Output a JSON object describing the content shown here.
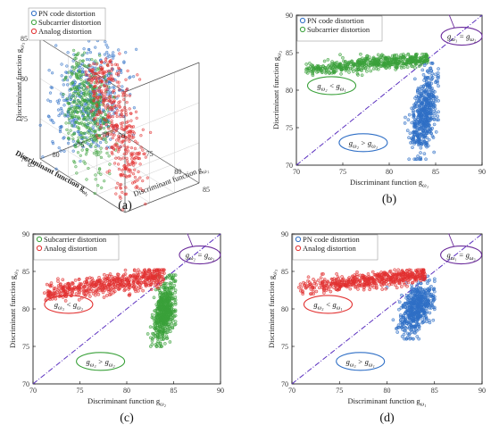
{
  "chart_data": [
    {
      "panel": "(a)",
      "type": "scatter",
      "legend": [
        "PN code distortion",
        "Subcarrier distortion",
        "Analog distortion"
      ],
      "legend_position": "top-left",
      "zlabel": "Discriminant function g",
      "zlabel_sub": "ω₃",
      "xlabel": "Discriminant function g",
      "xlabel_sub": "ω₂",
      "ylabel": "Discriminant function g",
      "ylabel_sub": "ω₁",
      "z_ticks": [
        "70",
        "75",
        "80",
        "85"
      ],
      "x_ticks": [
        "70",
        "75",
        "80",
        "85"
      ],
      "y_ticks": [
        "70",
        "75",
        "80",
        "85"
      ],
      "grid": true,
      "series": [
        {
          "name": "PN code distortion",
          "color": "#2f6fc6",
          "center": [
            84,
            78,
            81
          ],
          "count": 420
        },
        {
          "name": "Subcarrier distortion",
          "color": "#3aa13a",
          "center": [
            79,
            84,
            83
          ],
          "count": 420
        },
        {
          "name": "Analog distortion",
          "color": "#e23030",
          "center": [
            80,
            81,
            84
          ],
          "count": 420
        }
      ]
    },
    {
      "panel": "(b)",
      "type": "scatter",
      "legend": [
        "PN code distortion",
        "Subcarrier distortion"
      ],
      "legend_position": "top-left",
      "xlabel": "Discriminant function g",
      "xlabel_sub": "ω₁",
      "ylabel": "Discriminant function g",
      "ylabel_sub": "ω₂",
      "xlim": [
        70,
        90
      ],
      "ylim": [
        70,
        90
      ],
      "ticks": [
        "70",
        "75",
        "80",
        "85",
        "90"
      ],
      "diagonal": true,
      "annotations": [
        {
          "text": "g",
          "sub1": "ω₁",
          "op": "=",
          "sub2": "ω₂",
          "role": "boundary",
          "color": "#6a2a9a"
        },
        {
          "text": "g",
          "sub1": "ω₂",
          "op": "<",
          "sub2": "ω₁",
          "role": "region",
          "color": "#3aa13a"
        },
        {
          "text": "g",
          "sub1": "ω₂",
          "op": ">",
          "sub2": "ω₁",
          "role": "region",
          "color": "#2f6fc6"
        }
      ],
      "series": [
        {
          "name": "PN code distortion",
          "color": "#2f6fc6",
          "x_range": [
            81.5,
            85.3
          ],
          "y_range": [
            70.8,
            83.6
          ],
          "count": 520
        },
        {
          "name": "Subcarrier distortion",
          "color": "#3aa13a",
          "x_range": [
            71,
            84.2
          ],
          "y_range": [
            82,
            84.8
          ],
          "count": 520
        }
      ]
    },
    {
      "panel": "(c)",
      "type": "scatter",
      "legend": [
        "Subcarrier distortion",
        "Analog distortion"
      ],
      "legend_position": "top-left",
      "xlabel": "Discriminant function g",
      "xlabel_sub": "ω₂",
      "ylabel": "Discriminant function g",
      "ylabel_sub": "ω₃",
      "xlim": [
        70,
        90
      ],
      "ylim": [
        70,
        90
      ],
      "ticks": [
        "70",
        "75",
        "80",
        "85",
        "90"
      ],
      "diagonal": true,
      "annotations": [
        {
          "text": "g",
          "sub1": "ω₂",
          "op": "=",
          "sub2": "ω₃",
          "role": "boundary",
          "color": "#6a2a9a"
        },
        {
          "text": "g",
          "sub1": "ω₃",
          "op": "<",
          "sub2": "ω₂",
          "role": "region",
          "color": "#e23030"
        },
        {
          "text": "g",
          "sub1": "ω₃",
          "op": ">",
          "sub2": "ω₂",
          "role": "region",
          "color": "#3aa13a"
        }
      ],
      "series": [
        {
          "name": "Subcarrier distortion",
          "color": "#3aa13a",
          "x_range": [
            82,
            85.2
          ],
          "y_range": [
            75,
            84.5
          ],
          "count": 520
        },
        {
          "name": "Analog distortion",
          "color": "#e23030",
          "x_range": [
            71,
            84
          ],
          "y_range": [
            81,
            85.2
          ],
          "count": 520
        }
      ]
    },
    {
      "panel": "(d)",
      "type": "scatter",
      "legend": [
        "PN code distortion",
        "Analog distortion"
      ],
      "legend_position": "top-left",
      "xlabel": "Discriminant function g",
      "xlabel_sub": "ω₁",
      "ylabel": "Discriminant function g",
      "ylabel_sub": "ω₃",
      "xlim": [
        70,
        90
      ],
      "ylim": [
        70,
        90
      ],
      "ticks": [
        "70",
        "75",
        "80",
        "85",
        "90"
      ],
      "diagonal": true,
      "annotations": [
        {
          "text": "g",
          "sub1": "ω₁",
          "op": "=",
          "sub2": "ω₃",
          "role": "boundary",
          "color": "#6a2a9a"
        },
        {
          "text": "g",
          "sub1": "ω₃",
          "op": "<",
          "sub2": "ω₁",
          "role": "region",
          "color": "#e23030"
        },
        {
          "text": "g",
          "sub1": "ω₃",
          "op": ">",
          "sub2": "ω₁",
          "role": "region",
          "color": "#2f6fc6"
        }
      ],
      "series": [
        {
          "name": "PN code distortion",
          "color": "#2f6fc6",
          "x_range": [
            80,
            85
          ],
          "y_range": [
            76,
            84.5
          ],
          "count": 520
        },
        {
          "name": "Analog distortion",
          "color": "#e23030",
          "x_range": [
            70.5,
            84
          ],
          "y_range": [
            82,
            85.2
          ],
          "count": 520
        }
      ]
    }
  ]
}
